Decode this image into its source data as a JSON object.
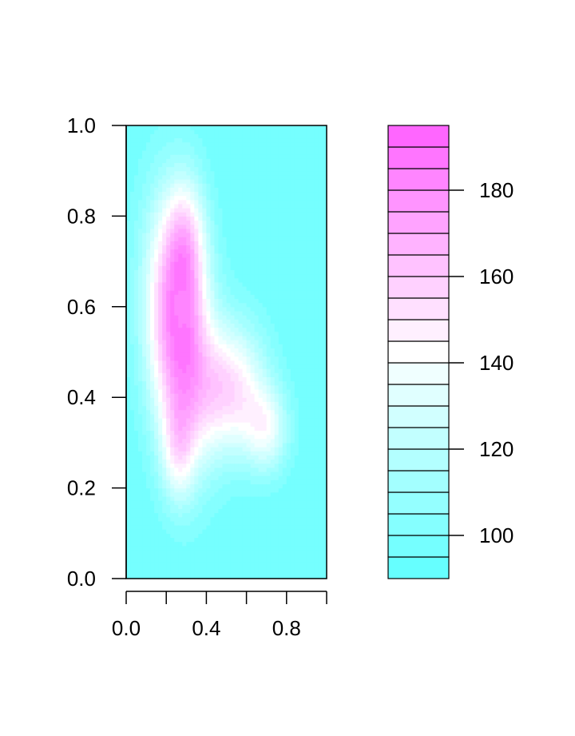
{
  "chart_data": {
    "type": "heatmap",
    "title": "",
    "xlabel": "",
    "ylabel": "",
    "xlim": [
      0,
      1
    ],
    "ylim": [
      0,
      1
    ],
    "x_ticks": [
      0.0,
      0.2,
      0.4,
      0.6,
      0.8,
      1.0
    ],
    "x_tick_labels": [
      "0.0",
      "",
      "0.4",
      "",
      "0.8",
      ""
    ],
    "y_ticks": [
      0.0,
      0.2,
      0.4,
      0.6,
      0.8,
      1.0
    ],
    "y_tick_labels": [
      "0.0",
      "0.2",
      "0.4",
      "0.6",
      "0.8",
      "1.0"
    ],
    "colorbar": {
      "range": [
        90,
        195
      ],
      "levels": 21,
      "ticks": [
        100,
        120,
        140,
        160,
        180
      ],
      "tick_labels": [
        "100",
        "120",
        "140",
        "160",
        "180"
      ],
      "low_color": "#66ffff",
      "mid_color": "#ffffff",
      "high_color": "#ff66ff",
      "mid_value": 140
    },
    "field_description_values": {
      "background_value": 100,
      "peaks": [
        {
          "x": 0.27,
          "y": 0.55,
          "value": 190
        },
        {
          "x": 0.55,
          "y": 0.42,
          "value": 170
        }
      ]
    }
  }
}
